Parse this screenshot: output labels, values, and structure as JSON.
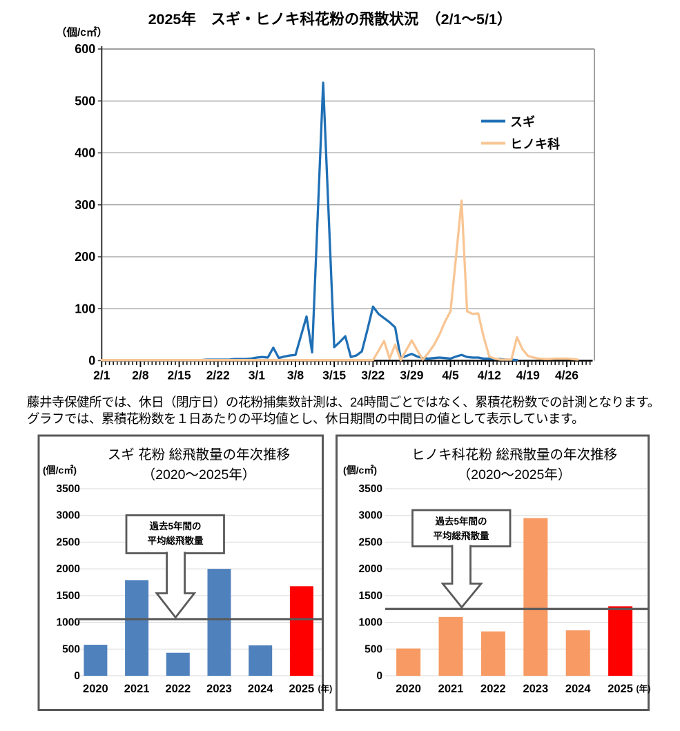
{
  "page": {
    "background": "#FFFFFF"
  },
  "note": {
    "line1": "藤井寺保健所では、休日（閉庁日）の花粉捕集数計測は、24時間ごとではなく、累積花粉数での計測となります。",
    "line2": "グラフでは、累積花粉数を１日あたりの平均値とし、休日期間の中間日の値として表示しています。"
  },
  "style": {
    "structure_gray": "#595959",
    "top_gridline": "#808080",
    "panel_gridline": "#D9D9D9",
    "axis_black": "#000000",
    "y_axis_dark": "#333333",
    "text_black": "#000000"
  },
  "chart_data": [
    {
      "type": "line",
      "title": "2025年　スギ・ヒノキ科花粉の飛散状況　（2/1～5/1）",
      "ylabel": "（個/c㎡）",
      "ylim": [
        0,
        600
      ],
      "ystep": 100,
      "grid": true,
      "legend_position": "right-inside",
      "x": [
        "2/1",
        "2/2",
        "2/3",
        "2/4",
        "2/5",
        "2/6",
        "2/7",
        "2/8",
        "2/9",
        "2/10",
        "2/11",
        "2/12",
        "2/13",
        "2/14",
        "2/15",
        "2/16",
        "2/17",
        "2/18",
        "2/19",
        "2/20",
        "2/21",
        "2/22",
        "2/23",
        "2/24",
        "2/25",
        "2/26",
        "2/27",
        "2/28",
        "3/1",
        "3/2",
        "3/3",
        "3/4",
        "3/5",
        "3/6",
        "3/7",
        "3/8",
        "3/9",
        "3/10",
        "3/11",
        "3/12",
        "3/13",
        "3/14",
        "3/15",
        "3/16",
        "3/17",
        "3/18",
        "3/19",
        "3/20",
        "3/21",
        "3/22",
        "3/23",
        "3/24",
        "3/25",
        "3/26",
        "3/27",
        "3/28",
        "3/29",
        "3/30",
        "3/31",
        "4/1",
        "4/2",
        "4/3",
        "4/4",
        "4/5",
        "4/6",
        "4/7",
        "4/8",
        "4/9",
        "4/10",
        "4/11",
        "4/12",
        "4/13",
        "4/14",
        "4/15",
        "4/16",
        "4/17",
        "4/18",
        "4/19",
        "4/20",
        "4/21",
        "4/22",
        "4/23",
        "4/24",
        "4/25",
        "4/26",
        "4/27",
        "4/28",
        "4/29",
        "4/30",
        "5/1"
      ],
      "x_major_tick_labels": [
        "2/1",
        "2/8",
        "2/15",
        "2/22",
        "3/1",
        "3/8",
        "3/15",
        "3/22",
        "3/29",
        "4/5",
        "4/12",
        "4/19",
        "4/26"
      ],
      "series": [
        {
          "name": "スギ",
          "color": "#1F6FB5",
          "values": [
            1,
            1,
            1,
            1,
            1,
            1,
            1,
            1,
            1,
            1,
            1,
            1,
            1,
            1,
            1,
            1,
            1,
            1,
            1,
            2,
            2,
            2,
            2,
            2,
            3,
            3,
            3,
            4,
            6,
            7,
            6,
            25,
            5,
            8,
            10,
            11,
            48,
            85,
            16,
            275,
            535,
            280,
            26,
            36,
            47,
            7,
            10,
            18,
            60,
            104,
            90,
            82,
            74,
            64,
            5,
            9,
            13,
            8,
            5,
            4,
            5,
            6,
            5,
            4,
            8,
            11,
            7,
            6,
            6,
            4,
            4,
            3,
            3,
            2,
            2,
            1,
            null,
            null,
            null,
            null,
            null,
            null,
            null,
            null,
            null,
            null,
            null,
            null,
            null,
            null
          ]
        },
        {
          "name": "ヒノキ科",
          "color": "#F8C593",
          "values": [
            1,
            1,
            1,
            1,
            1,
            1,
            1,
            1,
            1,
            1,
            1,
            1,
            1,
            1,
            1,
            1,
            1,
            1,
            1,
            1,
            1,
            1,
            1,
            1,
            1,
            1,
            1,
            1,
            1,
            1,
            1,
            1,
            1,
            1,
            1,
            1,
            1,
            1,
            1,
            1,
            1,
            1,
            1,
            1,
            1,
            1,
            1,
            1,
            1,
            1,
            19,
            38,
            4,
            31,
            1,
            20,
            39,
            20,
            2,
            15,
            30,
            50,
            75,
            95,
            200,
            308,
            95,
            90,
            91,
            45,
            8,
            4,
            2,
            2,
            2,
            45,
            22,
            9,
            6,
            4,
            3,
            3,
            4,
            4,
            4,
            3,
            2,
            null,
            null,
            null
          ]
        }
      ],
      "y_tick_labels": [
        "0",
        "100",
        "200",
        "300",
        "400",
        "500",
        "600"
      ]
    },
    {
      "type": "bar",
      "title_line1": "スギ 花粉 総飛散量の年次推移",
      "title_line2": "（2020～2025年）",
      "ylabel": "(個/c㎡)",
      "ylim": [
        0,
        3500
      ],
      "ystep": 500,
      "categories": [
        "2020",
        "2021",
        "2022",
        "2023",
        "2024",
        "2025"
      ],
      "last_category_suffix": "(年)",
      "values": [
        580,
        1790,
        430,
        2000,
        570,
        1675
      ],
      "bar_colors": [
        "#4F81BD",
        "#4F81BD",
        "#4F81BD",
        "#4F81BD",
        "#4F81BD",
        "#FE0000"
      ],
      "average_line_value": 1060,
      "callout": {
        "line1": "過去5年間の",
        "line2": "平均総飛散量"
      },
      "y_tick_labels": [
        "0",
        "500",
        "1000",
        "1500",
        "2000",
        "2500",
        "3000",
        "3500"
      ]
    },
    {
      "type": "bar",
      "title_line1": "ヒノキ科花粉 総飛散量の年次推移",
      "title_line2": "（2020～2025年）",
      "ylabel": "(個/c㎡)",
      "ylim": [
        0,
        3500
      ],
      "ystep": 500,
      "categories": [
        "2020",
        "2021",
        "2022",
        "2023",
        "2024",
        "2025"
      ],
      "last_category_suffix": "(年)",
      "values": [
        510,
        1100,
        830,
        2950,
        850,
        1300
      ],
      "bar_colors": [
        "#F79A63",
        "#F79A63",
        "#F79A63",
        "#F79A63",
        "#F79A63",
        "#FE0000"
      ],
      "average_line_value": 1250,
      "callout": {
        "line1": "過去5年間の",
        "line2": "平均総飛散量"
      },
      "y_tick_labels": [
        "0",
        "500",
        "1000",
        "1500",
        "2000",
        "2500",
        "3000",
        "3500"
      ]
    }
  ]
}
